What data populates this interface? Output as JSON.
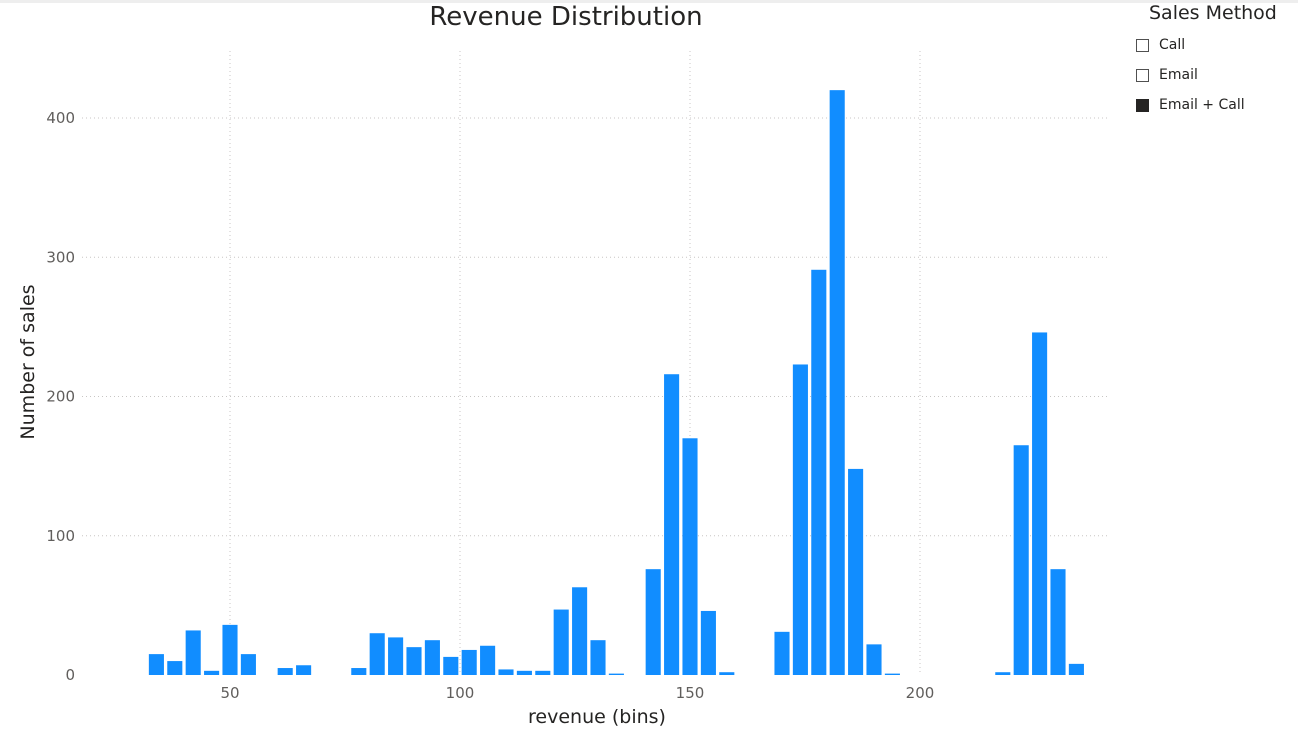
{
  "chart_data": {
    "type": "bar",
    "title": "Revenue Distribution",
    "xlabel": "revenue (bins)",
    "ylabel": "Number of sales",
    "xlim": [
      25,
      237
    ],
    "ylim": [
      0,
      450
    ],
    "xticks": [
      50,
      100,
      150,
      200
    ],
    "yticks": [
      0,
      100,
      200,
      300,
      400
    ],
    "bin_width": 4,
    "grid": true,
    "bar_color": "#118DFF",
    "x": [
      34,
      38,
      42,
      46,
      50,
      54,
      58,
      62,
      66,
      70,
      74,
      78,
      82,
      86,
      90,
      94,
      98,
      102,
      106,
      110,
      114,
      118,
      122,
      126,
      130,
      134,
      138,
      142,
      146,
      150,
      154,
      158,
      162,
      166,
      170,
      174,
      178,
      182,
      186,
      190,
      194,
      198,
      202,
      206,
      210,
      214,
      218,
      222,
      226,
      230,
      234
    ],
    "values": [
      15,
      10,
      32,
      3,
      36,
      15,
      0,
      5,
      7,
      0,
      0,
      5,
      30,
      27,
      20,
      25,
      13,
      18,
      21,
      4,
      3,
      3,
      47,
      63,
      25,
      1,
      0,
      76,
      216,
      170,
      46,
      2,
      0,
      0,
      31,
      223,
      291,
      420,
      148,
      22,
      1,
      0,
      0,
      0,
      0,
      0,
      2,
      165,
      246,
      76,
      8
    ]
  },
  "legend": {
    "title": "Sales Method",
    "position": "top-right",
    "items": [
      {
        "label": "Call",
        "checked": false
      },
      {
        "label": "Email",
        "checked": false
      },
      {
        "label": "Email + Call",
        "checked": true
      }
    ]
  }
}
